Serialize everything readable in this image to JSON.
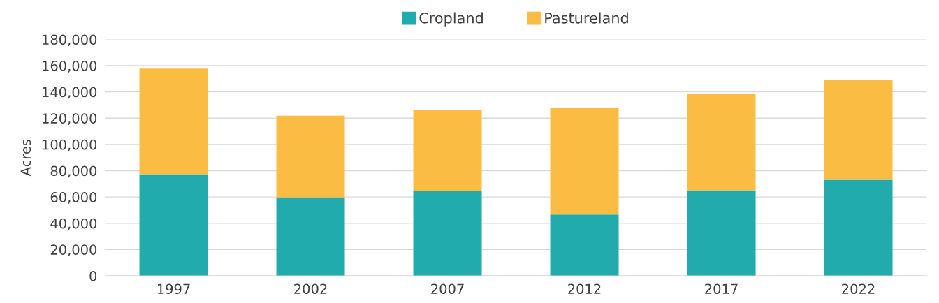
{
  "chart_data": {
    "type": "bar",
    "stacked": true,
    "ylabel": "Acres",
    "categories": [
      "1997",
      "2002",
      "2007",
      "2012",
      "2017",
      "2022"
    ],
    "series": [
      {
        "name": "Cropland",
        "color": "#21abad",
        "values": [
          77300,
          59800,
          64600,
          46600,
          65100,
          73100
        ]
      },
      {
        "name": "Pastureland",
        "color": "#fbbc43",
        "values": [
          80500,
          62000,
          61400,
          81500,
          73600,
          75700
        ]
      }
    ],
    "ylim": [
      0,
      180000
    ],
    "yticks": [
      {
        "value": 0,
        "label": "0"
      },
      {
        "value": 20000,
        "label": "20,000"
      },
      {
        "value": 40000,
        "label": "40,000"
      },
      {
        "value": 60000,
        "label": "60,000"
      },
      {
        "value": 80000,
        "label": "80,000"
      },
      {
        "value": 100000,
        "label": "100,000"
      },
      {
        "value": 120000,
        "label": "120,000"
      },
      {
        "value": 140000,
        "label": "140,000"
      },
      {
        "value": 160000,
        "label": "160,000"
      },
      {
        "value": 180000,
        "label": "180,000"
      }
    ],
    "grid": "y",
    "legend": "top"
  }
}
